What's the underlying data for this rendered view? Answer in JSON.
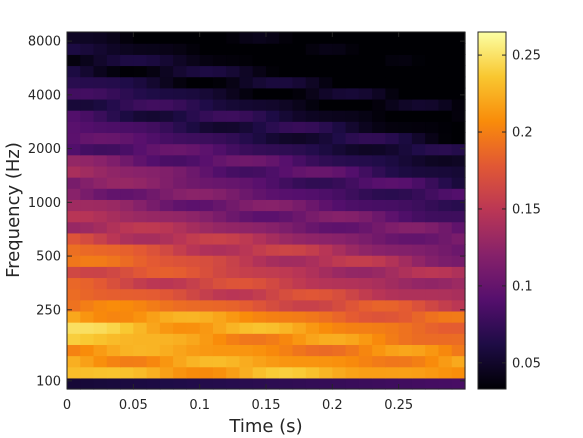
{
  "chart_data": {
    "type": "heatmap",
    "xlabel": "Time (s)",
    "ylabel": "Frequency (Hz)",
    "xlim": [
      0,
      0.3
    ],
    "ylim_hz": [
      90,
      9000
    ],
    "y_scale": "log",
    "x_ticks": [
      0,
      0.05,
      0.1,
      0.15,
      0.2,
      0.25
    ],
    "x_tick_labels": [
      "0",
      "0.05",
      "0.1",
      "0.15",
      "0.2",
      "0.25"
    ],
    "y_ticks": [
      100,
      250,
      500,
      1000,
      2000,
      4000,
      8000
    ],
    "y_tick_labels": [
      "100",
      "250",
      "500",
      "1000",
      "2000",
      "4000",
      "8000"
    ],
    "colormap": "inferno",
    "color_range": [
      0.033,
      0.265
    ],
    "colorbar_ticks": [
      0.05,
      0.1,
      0.15,
      0.2,
      0.25
    ],
    "colorbar_tick_labels": [
      "0.05",
      "0.1",
      "0.15",
      "0.2",
      "0.25"
    ],
    "time_bins": 30,
    "frequency_bands": 32,
    "grid": false
  }
}
